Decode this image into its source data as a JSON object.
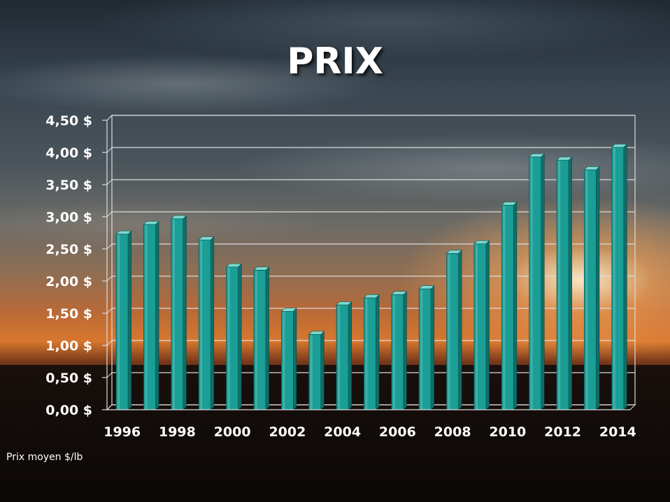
{
  "chart_data": {
    "type": "bar",
    "title": "PRIX",
    "ylabel": "",
    "xlabel": "",
    "footnote": "Prix moyen $/lb",
    "ylim": [
      0,
      4.5
    ],
    "ytick_labels": [
      "0,00 $",
      "0,50 $",
      "1,00 $",
      "1,50 $",
      "2,00 $",
      "2,50 $",
      "3,00 $",
      "3,50 $",
      "4,00 $",
      "4,50 $"
    ],
    "xtick_labels": [
      "1996",
      "1998",
      "2000",
      "2002",
      "2004",
      "2006",
      "2008",
      "2010",
      "2012",
      "2014"
    ],
    "categories": [
      "1996",
      "1997",
      "1998",
      "1999",
      "2000",
      "2001",
      "2002",
      "2003",
      "2004",
      "2005",
      "2006",
      "2007",
      "2008",
      "2009",
      "2010",
      "2011",
      "2012",
      "2013",
      "2014"
    ],
    "values": [
      2.73,
      2.88,
      2.97,
      2.64,
      2.22,
      2.17,
      1.53,
      1.17,
      1.63,
      1.74,
      1.79,
      1.88,
      2.43,
      2.58,
      3.18,
      3.93,
      3.88,
      3.73,
      4.08
    ],
    "grid": true,
    "bar_color": "#1a9e96",
    "bar_top_color": "#7fd8cf",
    "bar_side_color": "#0f6f69",
    "grid_color": "#dcdcdc"
  }
}
